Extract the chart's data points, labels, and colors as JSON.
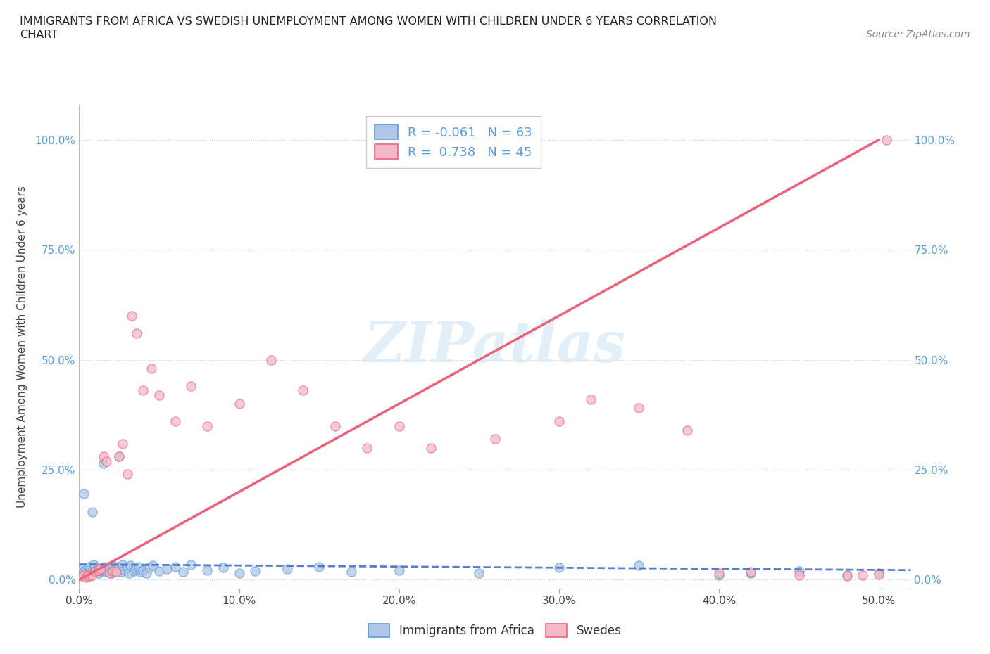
{
  "title_line1": "IMMIGRANTS FROM AFRICA VS SWEDISH UNEMPLOYMENT AMONG WOMEN WITH CHILDREN UNDER 6 YEARS CORRELATION",
  "title_line2": "CHART",
  "source": "Source: ZipAtlas.com",
  "ylabel": "Unemployment Among Women with Children Under 6 years",
  "xlim": [
    0.0,
    0.52
  ],
  "ylim": [
    -0.02,
    1.08
  ],
  "xtick_values": [
    0.0,
    0.1,
    0.2,
    0.3,
    0.4,
    0.5
  ],
  "xtick_labels": [
    "0.0%",
    "10.0%",
    "20.0%",
    "30.0%",
    "40.0%",
    "50.0%"
  ],
  "ytick_values": [
    0.0,
    0.25,
    0.5,
    0.75,
    1.0
  ],
  "ytick_labels": [
    "0.0%",
    "25.0%",
    "50.0%",
    "75.0%",
    "100.0%"
  ],
  "color_blue": "#aec6e8",
  "edge_blue": "#5b9bd5",
  "color_pink": "#f5b8c8",
  "edge_pink": "#e8637a",
  "line_blue_color": "#4472c4",
  "line_pink_color": "#e8637a",
  "R_blue": -0.061,
  "N_blue": 63,
  "R_pink": 0.738,
  "N_pink": 45,
  "watermark": "ZIPatlas",
  "blue_line_x": [
    0.0,
    0.52
  ],
  "blue_line_y": [
    0.035,
    0.022
  ],
  "pink_line_x": [
    0.0,
    0.5
  ],
  "pink_line_y": [
    0.0,
    1.0
  ],
  "blue_x": [
    0.001,
    0.002,
    0.003,
    0.004,
    0.005,
    0.006,
    0.007,
    0.008,
    0.009,
    0.01,
    0.011,
    0.012,
    0.013,
    0.014,
    0.015,
    0.016,
    0.017,
    0.018,
    0.019,
    0.02,
    0.021,
    0.022,
    0.023,
    0.025,
    0.026,
    0.027,
    0.028,
    0.03,
    0.031,
    0.032,
    0.034,
    0.035,
    0.037,
    0.038,
    0.04,
    0.042,
    0.044,
    0.046,
    0.05,
    0.055,
    0.06,
    0.065,
    0.07,
    0.08,
    0.09,
    0.1,
    0.11,
    0.13,
    0.15,
    0.17,
    0.2,
    0.25,
    0.3,
    0.35,
    0.4,
    0.42,
    0.45,
    0.48,
    0.5,
    0.003,
    0.008,
    0.015,
    0.025
  ],
  "blue_y": [
    0.02,
    0.025,
    0.018,
    0.022,
    0.015,
    0.03,
    0.025,
    0.02,
    0.035,
    0.028,
    0.022,
    0.015,
    0.025,
    0.02,
    0.03,
    0.025,
    0.018,
    0.022,
    0.028,
    0.015,
    0.032,
    0.02,
    0.025,
    0.03,
    0.018,
    0.035,
    0.022,
    0.028,
    0.015,
    0.032,
    0.02,
    0.025,
    0.03,
    0.018,
    0.022,
    0.015,
    0.028,
    0.032,
    0.02,
    0.025,
    0.03,
    0.018,
    0.035,
    0.022,
    0.028,
    0.015,
    0.02,
    0.025,
    0.03,
    0.018,
    0.022,
    0.015,
    0.028,
    0.032,
    0.01,
    0.015,
    0.02,
    0.01,
    0.015,
    0.195,
    0.155,
    0.265,
    0.28
  ],
  "pink_x": [
    0.002,
    0.003,
    0.004,
    0.005,
    0.006,
    0.007,
    0.008,
    0.01,
    0.012,
    0.013,
    0.015,
    0.017,
    0.019,
    0.021,
    0.023,
    0.025,
    0.027,
    0.03,
    0.033,
    0.036,
    0.04,
    0.045,
    0.05,
    0.06,
    0.07,
    0.08,
    0.1,
    0.12,
    0.14,
    0.16,
    0.18,
    0.2,
    0.22,
    0.26,
    0.3,
    0.32,
    0.35,
    0.38,
    0.4,
    0.42,
    0.45,
    0.48,
    0.49,
    0.5,
    0.505
  ],
  "pink_y": [
    0.008,
    0.01,
    0.005,
    0.008,
    0.012,
    0.008,
    0.01,
    0.02,
    0.022,
    0.025,
    0.28,
    0.27,
    0.015,
    0.02,
    0.018,
    0.28,
    0.31,
    0.24,
    0.6,
    0.56,
    0.43,
    0.48,
    0.42,
    0.36,
    0.44,
    0.35,
    0.4,
    0.5,
    0.43,
    0.35,
    0.3,
    0.35,
    0.3,
    0.32,
    0.36,
    0.41,
    0.39,
    0.34,
    0.015,
    0.018,
    0.01,
    0.008,
    0.01,
    0.012,
    1.0
  ]
}
